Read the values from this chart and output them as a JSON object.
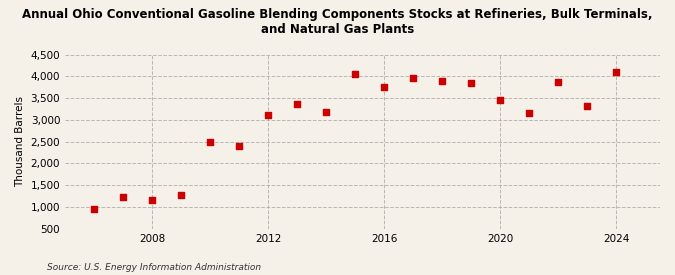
{
  "title": "Annual Ohio Conventional Gasoline Blending Components Stocks at Refineries, Bulk Terminals,\nand Natural Gas Plants",
  "ylabel": "Thousand Barrels",
  "source": "Source: U.S. Energy Information Administration",
  "background_color": "#f5f0e8",
  "marker_color": "#cc0000",
  "years": [
    2006,
    2007,
    2008,
    2009,
    2010,
    2011,
    2012,
    2013,
    2014,
    2015,
    2016,
    2017,
    2018,
    2019,
    2020,
    2021,
    2022,
    2023,
    2024
  ],
  "values": [
    950,
    1230,
    1160,
    1270,
    2490,
    2410,
    3110,
    3370,
    3190,
    4060,
    3760,
    3970,
    3900,
    3860,
    3450,
    3170,
    3880,
    3330,
    4100
  ],
  "ylim": [
    500,
    4500
  ],
  "yticks": [
    500,
    1000,
    1500,
    2000,
    2500,
    3000,
    3500,
    4000,
    4500
  ],
  "xticks": [
    2008,
    2012,
    2016,
    2020,
    2024
  ],
  "xlim": [
    2005.0,
    2025.5
  ]
}
